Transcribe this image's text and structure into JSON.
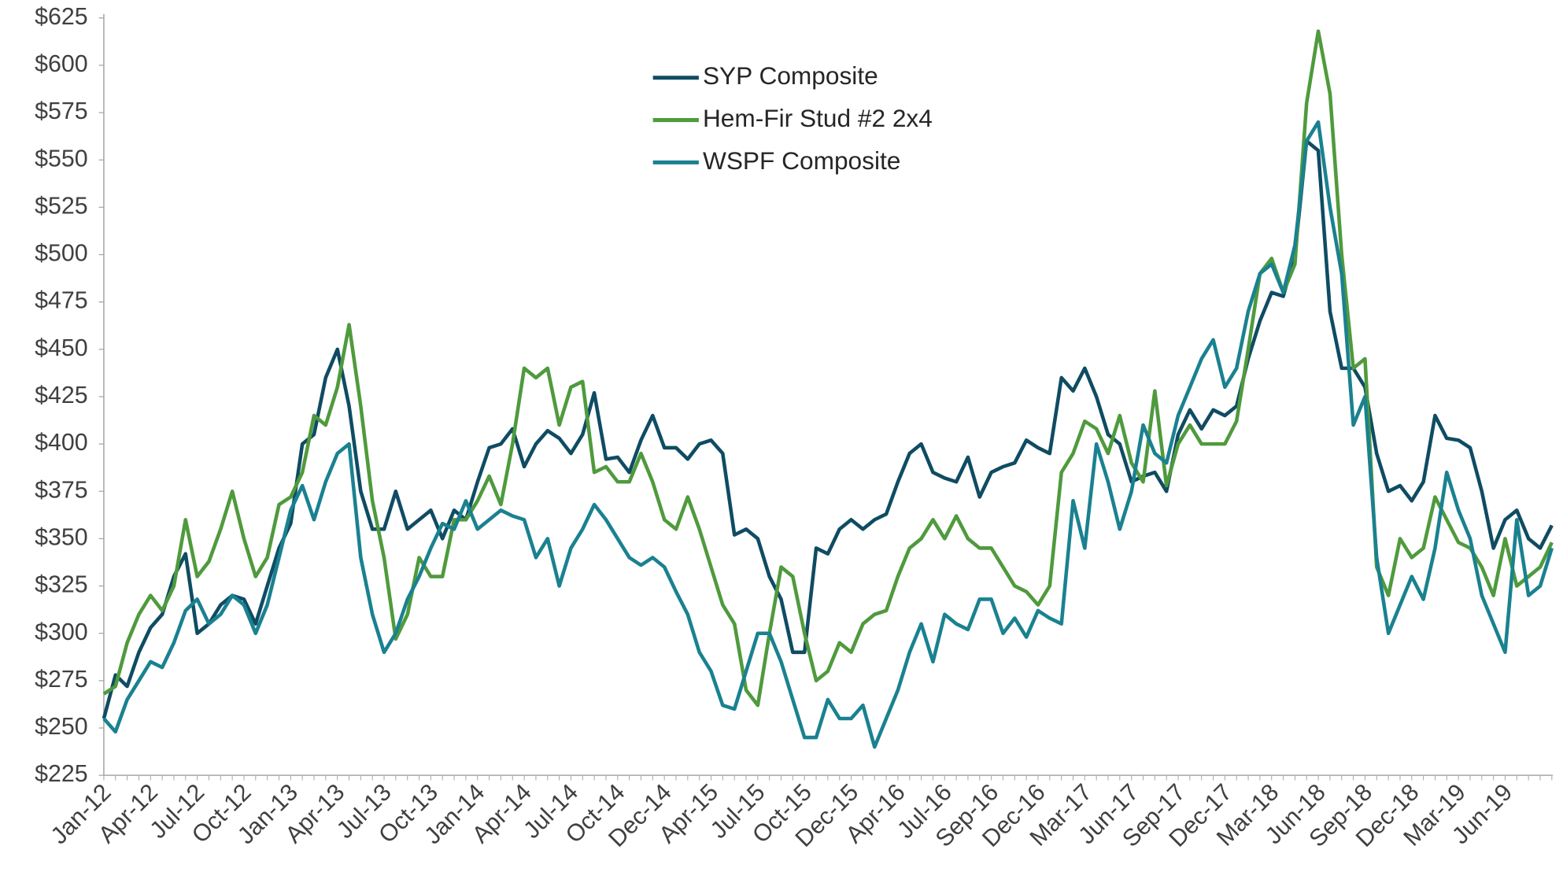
{
  "chart_data": {
    "type": "line",
    "categories": [
      "Jan-12",
      null,
      null,
      null,
      "Apr-12",
      null,
      null,
      null,
      "Jul-12",
      null,
      null,
      null,
      "Oct-12",
      null,
      null,
      null,
      "Jan-13",
      null,
      null,
      null,
      "Apr-13",
      null,
      null,
      null,
      "Jul-13",
      null,
      null,
      null,
      "Oct-13",
      null,
      null,
      null,
      "Jan-14",
      null,
      null,
      null,
      "Apr-14",
      null,
      null,
      null,
      "Jul-14",
      null,
      null,
      null,
      "Oct-14",
      null,
      null,
      null,
      "Dec-14",
      null,
      null,
      null,
      "Apr-15",
      null,
      null,
      null,
      "Jul-15",
      null,
      null,
      null,
      "Oct-15",
      null,
      null,
      null,
      "Dec-15",
      null,
      null,
      null,
      "Apr-16",
      null,
      null,
      null,
      "Jul-16",
      null,
      null,
      null,
      "Sep-16",
      null,
      null,
      null,
      "Dec-16",
      null,
      null,
      null,
      "Mar-17",
      null,
      null,
      null,
      "Jun-17",
      null,
      null,
      null,
      "Sep-17",
      null,
      null,
      null,
      "Dec-17",
      null,
      null,
      null,
      "Mar-18",
      null,
      null,
      null,
      "Jun-18",
      null,
      null,
      null,
      "Sep-18",
      null,
      null,
      null,
      "Dec-18",
      null,
      null,
      null,
      "Mar-19",
      null,
      null,
      null,
      "Jun-19",
      null,
      null,
      null,
      null
    ],
    "series": [
      {
        "name": "SYP Composite",
        "color": "#0f4c63",
        "values": [
          255,
          278,
          272,
          290,
          303,
          310,
          330,
          342,
          300,
          305,
          315,
          320,
          318,
          305,
          325,
          345,
          358,
          400,
          405,
          435,
          450,
          420,
          375,
          355,
          355,
          375,
          355,
          360,
          365,
          350,
          365,
          360,
          380,
          398,
          400,
          408,
          388,
          400,
          407,
          403,
          395,
          405,
          427,
          392,
          393,
          385,
          402,
          415,
          398,
          398,
          392,
          400,
          402,
          395,
          352,
          355,
          350,
          330,
          318,
          290,
          290,
          345,
          342,
          355,
          360,
          355,
          360,
          363,
          380,
          395,
          400,
          385,
          382,
          380,
          393,
          372,
          385,
          388,
          390,
          402,
          398,
          395,
          435,
          428,
          440,
          425,
          405,
          400,
          380,
          383,
          385,
          375,
          405,
          418,
          408,
          418,
          415,
          420,
          445,
          465,
          480,
          478,
          500,
          560,
          555,
          470,
          440,
          440,
          430,
          395,
          375,
          378,
          370,
          380,
          415,
          403,
          402,
          398,
          375,
          345,
          360,
          365,
          350,
          345,
          357
        ]
      },
      {
        "name": "Hem-Fir Stud #2 2x4",
        "color": "#4f9a3d",
        "values": [
          268,
          272,
          295,
          310,
          320,
          312,
          325,
          360,
          330,
          338,
          355,
          375,
          350,
          330,
          340,
          368,
          372,
          385,
          415,
          410,
          430,
          463,
          420,
          370,
          340,
          297,
          310,
          340,
          330,
          330,
          360,
          360,
          370,
          383,
          368,
          400,
          440,
          435,
          440,
          410,
          430,
          433,
          385,
          388,
          380,
          380,
          395,
          380,
          360,
          355,
          372,
          355,
          335,
          315,
          305,
          270,
          262,
          300,
          335,
          330,
          300,
          275,
          280,
          295,
          290,
          305,
          310,
          312,
          330,
          345,
          350,
          360,
          350,
          362,
          350,
          345,
          345,
          335,
          325,
          322,
          315,
          325,
          385,
          395,
          412,
          408,
          395,
          415,
          390,
          380,
          428,
          378,
          400,
          410,
          400,
          400,
          400,
          412,
          450,
          490,
          498,
          480,
          495,
          580,
          618,
          585,
          500,
          440,
          445,
          335,
          320,
          350,
          340,
          345,
          372,
          360,
          348,
          345,
          335,
          320,
          350,
          325,
          330,
          335,
          348
        ]
      },
      {
        "name": "WSPF Composite",
        "color": "#1a8190",
        "values": [
          255,
          248,
          265,
          275,
          285,
          282,
          295,
          312,
          318,
          305,
          310,
          320,
          315,
          300,
          315,
          340,
          365,
          378,
          360,
          380,
          395,
          400,
          340,
          310,
          290,
          300,
          318,
          330,
          345,
          358,
          355,
          370,
          355,
          360,
          365,
          362,
          360,
          340,
          350,
          325,
          345,
          355,
          368,
          360,
          350,
          340,
          336,
          340,
          335,
          322,
          310,
          290,
          280,
          262,
          260,
          280,
          300,
          300,
          285,
          265,
          245,
          245,
          265,
          255,
          255,
          262,
          240,
          255,
          270,
          290,
          305,
          285,
          310,
          305,
          302,
          318,
          318,
          300,
          308,
          298,
          312,
          308,
          305,
          370,
          345,
          400,
          380,
          355,
          375,
          410,
          395,
          390,
          415,
          430,
          445,
          455,
          430,
          440,
          470,
          490,
          495,
          480,
          505,
          560,
          570,
          525,
          490,
          410,
          425,
          340,
          300,
          315,
          330,
          318,
          345,
          385,
          365,
          350,
          320,
          305,
          290,
          360,
          320,
          325,
          345
        ]
      }
    ],
    "ylim": [
      225,
      625
    ],
    "yticks": [
      {
        "value": 225,
        "label": "$225"
      },
      {
        "value": 250,
        "label": "$250"
      },
      {
        "value": 275,
        "label": "$275"
      },
      {
        "value": 300,
        "label": "$300"
      },
      {
        "value": 325,
        "label": "$325"
      },
      {
        "value": 350,
        "label": "$350"
      },
      {
        "value": 375,
        "label": "$375"
      },
      {
        "value": 400,
        "label": "$400"
      },
      {
        "value": 425,
        "label": "$425"
      },
      {
        "value": 450,
        "label": "$450"
      },
      {
        "value": 475,
        "label": "$475"
      },
      {
        "value": 500,
        "label": "$500"
      },
      {
        "value": 525,
        "label": "$525"
      },
      {
        "value": 550,
        "label": "$550"
      },
      {
        "value": 575,
        "label": "$575"
      },
      {
        "value": 600,
        "label": "$600"
      },
      {
        "value": 625,
        "label": "$625"
      }
    ],
    "grid": false,
    "legend": "top"
  }
}
